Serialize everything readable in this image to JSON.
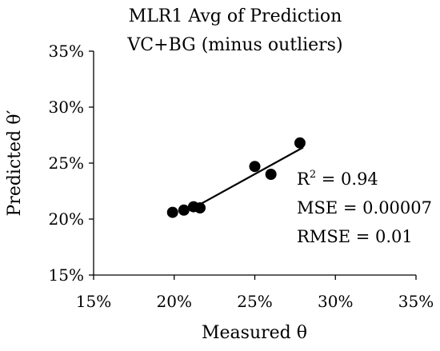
{
  "chart_data": {
    "type": "scatter",
    "title": [
      "MLR1 Avg of Prediction",
      "VC+BG (minus outliers)"
    ],
    "xlabel": "Measured θ",
    "ylabel": "Predicted θ′",
    "xlim": [
      0.15,
      0.35
    ],
    "ylim": [
      0.15,
      0.35
    ],
    "x_ticks": [
      0.15,
      0.2,
      0.25,
      0.3,
      0.35
    ],
    "x_tick_labels": [
      "15%",
      "20%",
      "25%",
      "30%",
      "35%"
    ],
    "y_ticks": [
      0.15,
      0.2,
      0.25,
      0.3,
      0.35
    ],
    "y_tick_labels": [
      "15%",
      "20%",
      "25%",
      "30%",
      "35%"
    ],
    "grid": false,
    "legend": "none",
    "points": [
      {
        "x": 0.199,
        "y": 0.206
      },
      {
        "x": 0.206,
        "y": 0.208
      },
      {
        "x": 0.212,
        "y": 0.211
      },
      {
        "x": 0.216,
        "y": 0.21
      },
      {
        "x": 0.25,
        "y": 0.247
      },
      {
        "x": 0.26,
        "y": 0.24
      },
      {
        "x": 0.278,
        "y": 0.268
      }
    ],
    "trendline": {
      "x": [
        0.212,
        0.28
      ],
      "y": [
        0.21,
        0.264
      ]
    },
    "annotations": {
      "r2_base": "R",
      "r2_sup": "2",
      "r2_value": " = 0.94",
      "mse": "MSE = 0.00007",
      "rmse": "RMSE = 0.01"
    },
    "colors": {
      "marker": "#000000",
      "line": "#000000",
      "axis": "#000000"
    }
  }
}
